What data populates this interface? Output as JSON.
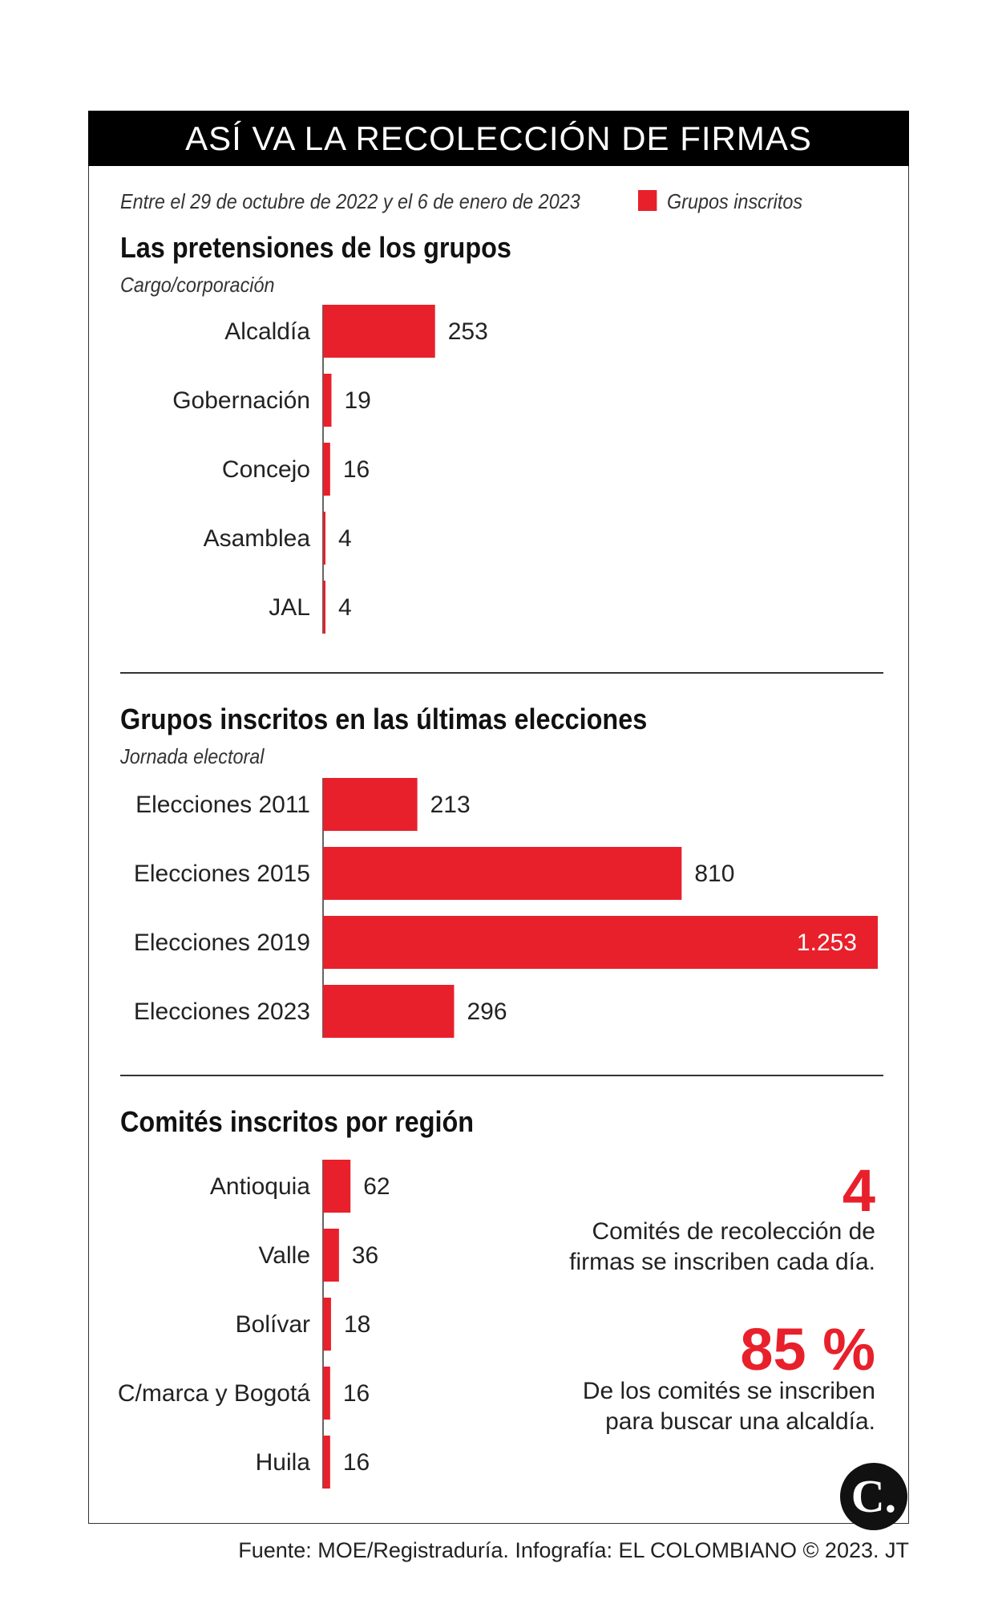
{
  "header": {
    "title": "ASÍ VA LA RECOLECCIÓN DE FIRMAS"
  },
  "subtitle": "Entre el 29 de octubre de 2022 y el 6 de enero de 2023",
  "legend": {
    "label": "Grupos inscritos",
    "color": "#e8202b"
  },
  "sections": {
    "pretensiones": {
      "title": "Las pretensiones de los grupos",
      "subtitle": "Cargo/corporación"
    },
    "elecciones": {
      "title": "Grupos inscritos en las últimas elecciones",
      "subtitle": "Jornada electoral"
    },
    "regiones": {
      "title": "Comités inscritos por región"
    }
  },
  "stats": [
    {
      "value": "4",
      "text": "Comités de recolección de firmas se inscriben cada día."
    },
    {
      "value": "85 %",
      "text": "De los comités se inscriben para buscar una alcaldía."
    }
  ],
  "logo": {
    "glyph": "C."
  },
  "footer": {
    "source": "Fuente: MOE/Registraduría. Infografía: EL COLOMBIANO © 2023. JT"
  },
  "chart_data": [
    {
      "type": "bar",
      "orientation": "horizontal",
      "title": "Las pretensiones de los grupos",
      "subtitle": "Cargo/corporación",
      "categories": [
        "Alcaldía",
        "Gobernación",
        "Concejo",
        "Asamblea",
        "JAL"
      ],
      "values": [
        253,
        19,
        16,
        4,
        4
      ],
      "value_labels": [
        "253",
        "19",
        "16",
        "4",
        "4"
      ],
      "xlim": [
        0,
        1253
      ]
    },
    {
      "type": "bar",
      "orientation": "horizontal",
      "title": "Grupos inscritos en las últimas elecciones",
      "subtitle": "Jornada electoral",
      "categories": [
        "Elecciones 2011",
        "Elecciones 2015",
        "Elecciones 2019",
        "Elecciones 2023"
      ],
      "values": [
        213,
        810,
        1253,
        296
      ],
      "value_labels": [
        "213",
        "810",
        "1.253",
        "296"
      ],
      "xlim": [
        0,
        1253
      ]
    },
    {
      "type": "bar",
      "orientation": "horizontal",
      "title": "Comités inscritos por región",
      "categories": [
        "Antioquia",
        "Valle",
        "Bolívar",
        "C/marca y Bogotá",
        "Huila"
      ],
      "values": [
        62,
        36,
        18,
        16,
        16
      ],
      "value_labels": [
        "62",
        "36",
        "18",
        "16",
        "16"
      ],
      "xlim": [
        0,
        1253
      ]
    }
  ]
}
